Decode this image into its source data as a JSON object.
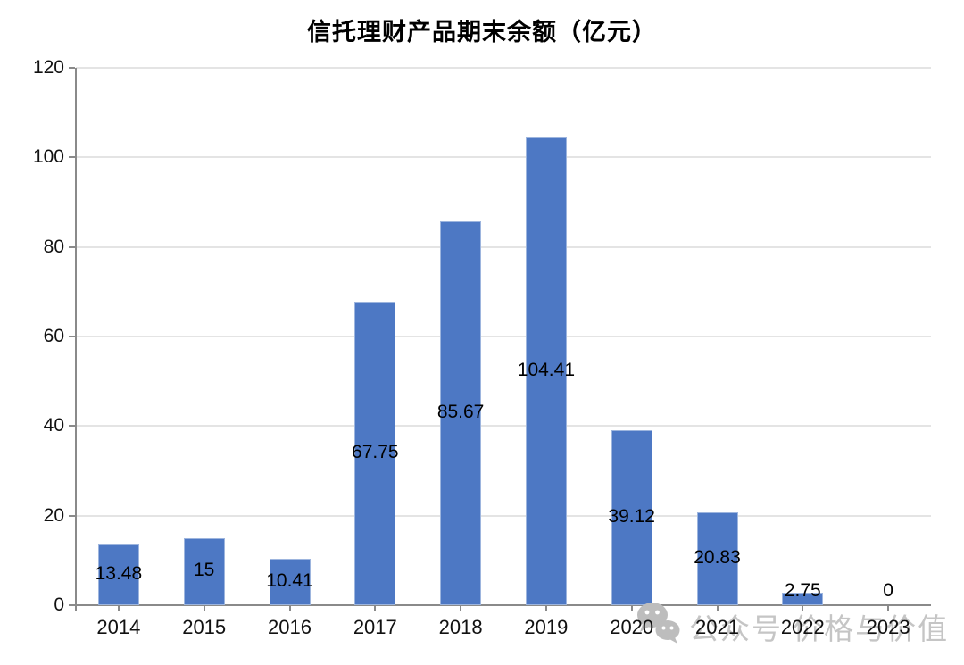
{
  "title": "信托理财产品期末余额（亿元）",
  "watermark": {
    "icon": "wechat-logo",
    "text": "公众号 价格与价值",
    "color": "#c5c5c5"
  },
  "chart_data": {
    "type": "bar",
    "title": "信托理财产品期末余额（亿元）",
    "categories": [
      "2014",
      "2015",
      "2016",
      "2017",
      "2018",
      "2019",
      "2020",
      "2021",
      "2022",
      "2023"
    ],
    "values": [
      13.48,
      15,
      10.41,
      67.75,
      85.67,
      104.41,
      39.12,
      20.83,
      2.75,
      0
    ],
    "data_labels": [
      "13.48",
      "15",
      "10.41",
      "67.75",
      "85.67",
      "104.41",
      "39.12",
      "20.83",
      "2.75",
      "0"
    ],
    "xlabel": "",
    "ylabel": "",
    "ylim": [
      0,
      120
    ],
    "yticks": [
      0,
      20,
      40,
      60,
      80,
      100,
      120
    ],
    "grid": true,
    "legend": false,
    "bar_color": "#4d78c4",
    "axis_color": "#8a8a8a",
    "gridline_color": "#e4e4e4"
  }
}
